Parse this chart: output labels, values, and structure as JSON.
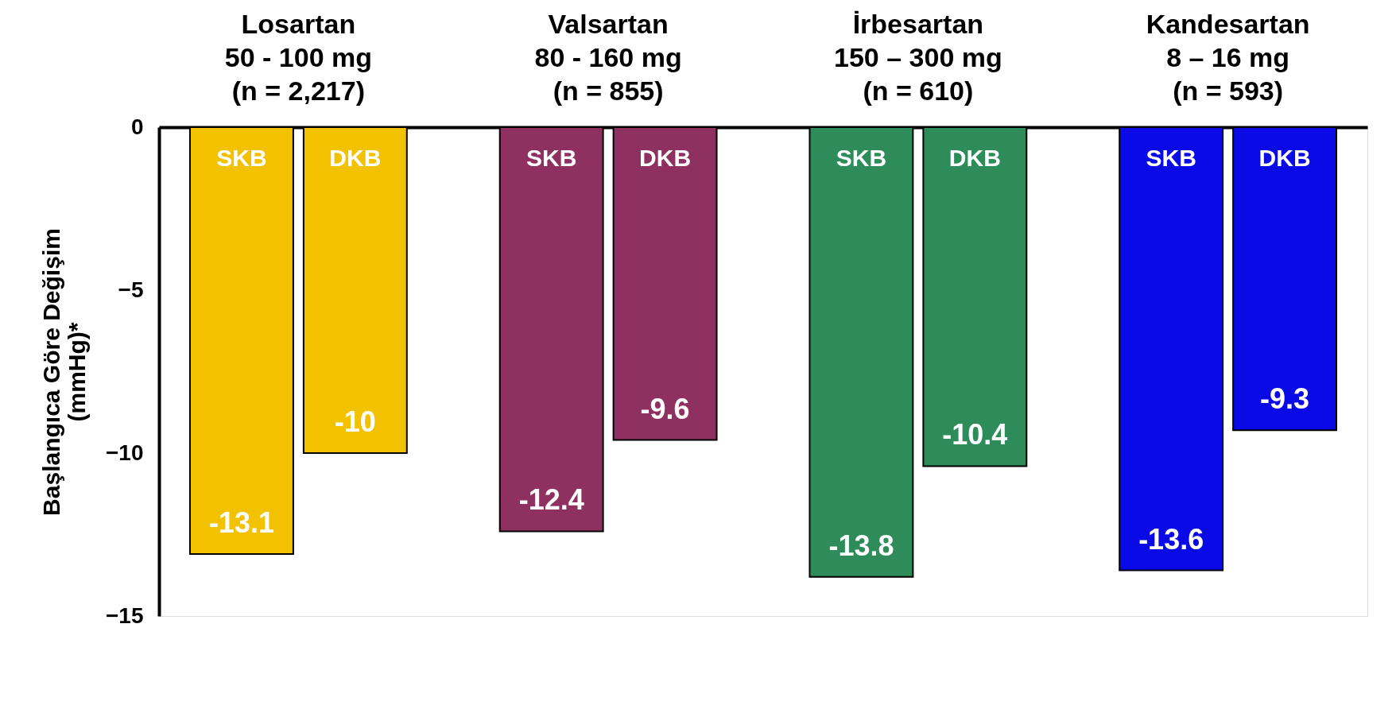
{
  "chart_data": {
    "type": "bar",
    "ylabel": "Başlangıca Göre Değişim\n(mmHg)*",
    "categories": [
      "SKB",
      "DKB",
      "SKB",
      "DKB",
      "SKB",
      "DKB",
      "SKB",
      "DKB"
    ],
    "values": [
      -13.1,
      -10,
      -12.4,
      -9.6,
      -13.8,
      -10.4,
      -13.6,
      -9.3
    ],
    "colors": [
      "#f2c200",
      "#f2c200",
      "#8e3060",
      "#8e3060",
      "#2e8b5a",
      "#2e8b5a",
      "#0a0ae6",
      "#0a0ae6"
    ],
    "data_labels": true,
    "annotations": [
      "Losartan\n50 - 100 mg\n(n = 2,217)",
      "Valsartan\n80 - 160 mg\n(n = 855)",
      "İrbesartan\n150 – 300 mg\n(n = 610)",
      "Kandesartan\n8 – 16 mg\n(n = 593)"
    ],
    "ylim": [
      -15,
      0
    ],
    "yticks": [
      0,
      -5,
      -10,
      -15
    ],
    "grid": false
  }
}
